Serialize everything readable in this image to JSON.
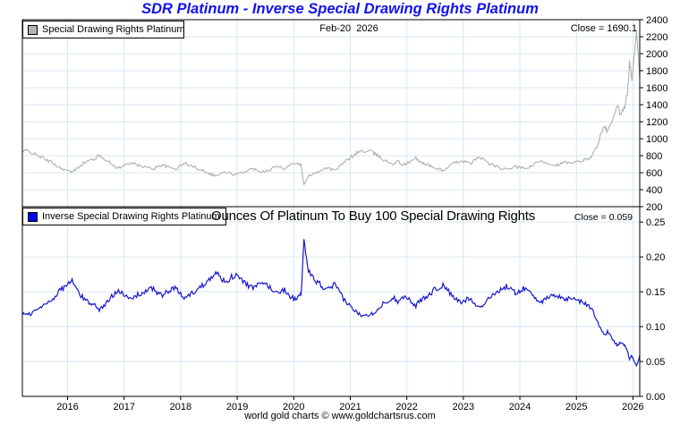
{
  "page": {
    "title": "SDR Platinum - Inverse Special Drawing Rights Platinum",
    "footer": "world gold charts © www.goldchartsrus.com"
  },
  "top_panel": {
    "legend_label": "Special Drawing Rights Platinum",
    "date_label": "Feb-20  2026",
    "close_label": "Close = 1690.1"
  },
  "bottom_panel": {
    "legend_label": "Inverse Special Drawing Rights Platinum",
    "subtitle": "Ounces Of Platinum To Buy 100 Special Drawing Rights",
    "close_label": "Close = 0.059"
  },
  "colors": {
    "title": "#1212ee",
    "grid": "#d7e6f4",
    "axis": "#000000",
    "tick_text": "#000000",
    "sdr_line": "#a9a9a9",
    "inverse_line": "#1616cd",
    "sdr_swatch": "#b3b3b3",
    "inverse_swatch": "#0000e6"
  },
  "chart_data": {
    "type": "line",
    "title": "SDR Platinum - Inverse Special Drawing Rights Platinum",
    "grid": true,
    "legend_position": "top-left",
    "x_unit": "year (fractional)",
    "xlim": [
      2015.2,
      2026.12
    ],
    "xticks": [
      2016,
      2017,
      2018,
      2019,
      2020,
      2021,
      2022,
      2023,
      2024,
      2025,
      2026
    ],
    "panels": [
      {
        "name": "Special Drawing Rights Platinum",
        "date": "Feb-20 2026",
        "close": 1690.1,
        "ylim": [
          200,
          2400
        ],
        "ytick_labels": [
          "2400",
          "2200",
          "2000",
          "1800",
          "1600",
          "1400",
          "1200",
          "1000",
          "800",
          "600",
          "400",
          "200"
        ],
        "line_color_key": "sdr_line"
      },
      {
        "name": "Inverse Special Drawing Rights Platinum",
        "subtitle": "Ounces Of Platinum To Buy 100 Special Drawing Rights",
        "close": 0.059,
        "ylim": [
          0,
          0.272
        ],
        "ytick_labels": [
          "0.25",
          "0.20",
          "0.15",
          "0.10",
          "0.05",
          "0.00"
        ],
        "line_color_key": "inverse_line",
        "relationship": "inverse values = 100 / SDR platinum price"
      }
    ],
    "texture_noise_pct": 2.5,
    "points_x_sdr_inverse": [
      [
        2015.2,
        845,
        0.1183
      ],
      [
        2015.28,
        860,
        0.1163
      ],
      [
        2015.36,
        840,
        0.119
      ],
      [
        2015.44,
        810,
        0.1235
      ],
      [
        2015.52,
        790,
        0.1266
      ],
      [
        2015.6,
        755,
        0.1325
      ],
      [
        2015.68,
        735,
        0.1361
      ],
      [
        2015.76,
        705,
        0.1418
      ],
      [
        2015.84,
        665,
        0.1504
      ],
      [
        2015.92,
        645,
        0.155
      ],
      [
        2016.0,
        620,
        0.1613
      ],
      [
        2016.08,
        605,
        0.1653
      ],
      [
        2016.16,
        650,
        0.1538
      ],
      [
        2016.24,
        695,
        0.1439
      ],
      [
        2016.32,
        725,
        0.1379
      ],
      [
        2016.4,
        745,
        0.1342
      ],
      [
        2016.48,
        765,
        0.1307
      ],
      [
        2016.56,
        800,
        0.125
      ],
      [
        2016.64,
        775,
        0.129
      ],
      [
        2016.72,
        730,
        0.137
      ],
      [
        2016.8,
        690,
        0.1449
      ],
      [
        2016.88,
        655,
        0.1527
      ],
      [
        2016.96,
        665,
        0.1504
      ],
      [
        2017.04,
        705,
        0.1418
      ],
      [
        2017.12,
        720,
        0.1389
      ],
      [
        2017.2,
        695,
        0.1439
      ],
      [
        2017.28,
        680,
        0.1471
      ],
      [
        2017.36,
        670,
        0.1493
      ],
      [
        2017.44,
        655,
        0.1527
      ],
      [
        2017.52,
        645,
        0.155
      ],
      [
        2017.6,
        675,
        0.1481
      ],
      [
        2017.68,
        695,
        0.1439
      ],
      [
        2017.76,
        665,
        0.1504
      ],
      [
        2017.84,
        655,
        0.1527
      ],
      [
        2017.92,
        645,
        0.155
      ],
      [
        2018.0,
        685,
        0.146
      ],
      [
        2018.08,
        710,
        0.1408
      ],
      [
        2018.16,
        685,
        0.146
      ],
      [
        2018.24,
        665,
        0.1504
      ],
      [
        2018.32,
        645,
        0.155
      ],
      [
        2018.4,
        625,
        0.16
      ],
      [
        2018.48,
        600,
        0.1667
      ],
      [
        2018.56,
        575,
        0.1739
      ],
      [
        2018.64,
        565,
        0.177
      ],
      [
        2018.72,
        595,
        0.1681
      ],
      [
        2018.8,
        605,
        0.1653
      ],
      [
        2018.88,
        590,
        0.1695
      ],
      [
        2018.96,
        575,
        0.1739
      ],
      [
        2019.04,
        590,
        0.1695
      ],
      [
        2019.12,
        610,
        0.1639
      ],
      [
        2019.2,
        630,
        0.1587
      ],
      [
        2019.28,
        645,
        0.155
      ],
      [
        2019.36,
        630,
        0.1587
      ],
      [
        2019.44,
        615,
        0.1626
      ],
      [
        2019.52,
        625,
        0.16
      ],
      [
        2019.6,
        645,
        0.155
      ],
      [
        2019.68,
        675,
        0.1481
      ],
      [
        2019.76,
        660,
        0.1515
      ],
      [
        2019.84,
        655,
        0.1527
      ],
      [
        2019.92,
        690,
        0.1449
      ],
      [
        2020.0,
        715,
        0.1399
      ],
      [
        2020.08,
        705,
        0.1418
      ],
      [
        2020.13,
        685,
        0.146
      ],
      [
        2020.18,
        450,
        0.2222
      ],
      [
        2020.24,
        540,
        0.1852
      ],
      [
        2020.32,
        585,
        0.1709
      ],
      [
        2020.4,
        605,
        0.1653
      ],
      [
        2020.48,
        625,
        0.16
      ],
      [
        2020.56,
        660,
        0.1515
      ],
      [
        2020.64,
        645,
        0.155
      ],
      [
        2020.72,
        625,
        0.16
      ],
      [
        2020.8,
        665,
        0.1504
      ],
      [
        2020.88,
        715,
        0.1399
      ],
      [
        2020.96,
        755,
        0.1325
      ],
      [
        2021.04,
        795,
        0.1258
      ],
      [
        2021.12,
        835,
        0.1198
      ],
      [
        2021.2,
        855,
        0.117
      ],
      [
        2021.28,
        845,
        0.1183
      ],
      [
        2021.36,
        855,
        0.117
      ],
      [
        2021.44,
        820,
        0.122
      ],
      [
        2021.52,
        785,
        0.1274
      ],
      [
        2021.6,
        745,
        0.1342
      ],
      [
        2021.68,
        725,
        0.1379
      ],
      [
        2021.76,
        705,
        0.1418
      ],
      [
        2021.84,
        735,
        0.1361
      ],
      [
        2021.92,
        695,
        0.1439
      ],
      [
        2022.0,
        705,
        0.1418
      ],
      [
        2022.08,
        735,
        0.1361
      ],
      [
        2022.16,
        770,
        0.1299
      ],
      [
        2022.24,
        725,
        0.1379
      ],
      [
        2022.32,
        705,
        0.1418
      ],
      [
        2022.4,
        685,
        0.146
      ],
      [
        2022.48,
        655,
        0.1527
      ],
      [
        2022.56,
        645,
        0.155
      ],
      [
        2022.64,
        625,
        0.16
      ],
      [
        2022.72,
        655,
        0.1527
      ],
      [
        2022.8,
        700,
        0.1429
      ],
      [
        2022.88,
        720,
        0.1389
      ],
      [
        2022.96,
        745,
        0.1342
      ],
      [
        2023.04,
        725,
        0.1379
      ],
      [
        2023.12,
        705,
        0.1418
      ],
      [
        2023.2,
        745,
        0.1342
      ],
      [
        2023.28,
        785,
        0.1274
      ],
      [
        2023.36,
        765,
        0.1307
      ],
      [
        2023.44,
        705,
        0.1418
      ],
      [
        2023.52,
        695,
        0.1439
      ],
      [
        2023.6,
        665,
        0.1504
      ],
      [
        2023.68,
        645,
        0.155
      ],
      [
        2023.76,
        635,
        0.1575
      ],
      [
        2023.84,
        655,
        0.1527
      ],
      [
        2023.92,
        670,
        0.1493
      ],
      [
        2024.0,
        660,
        0.1515
      ],
      [
        2024.08,
        645,
        0.155
      ],
      [
        2024.16,
        665,
        0.1504
      ],
      [
        2024.24,
        690,
        0.1449
      ],
      [
        2024.32,
        725,
        0.1379
      ],
      [
        2024.4,
        735,
        0.1361
      ],
      [
        2024.48,
        715,
        0.1399
      ],
      [
        2024.56,
        700,
        0.1429
      ],
      [
        2024.64,
        690,
        0.1449
      ],
      [
        2024.72,
        700,
        0.1429
      ],
      [
        2024.8,
        725,
        0.1379
      ],
      [
        2024.88,
        705,
        0.1418
      ],
      [
        2024.96,
        715,
        0.1399
      ],
      [
        2025.04,
        730,
        0.137
      ],
      [
        2025.12,
        745,
        0.1342
      ],
      [
        2025.2,
        765,
        0.1307
      ],
      [
        2025.28,
        800,
        0.125
      ],
      [
        2025.36,
        910,
        0.1099
      ],
      [
        2025.44,
        1060,
        0.0943
      ],
      [
        2025.5,
        1140,
        0.0877
      ],
      [
        2025.55,
        1080,
        0.0926
      ],
      [
        2025.62,
        1180,
        0.0847
      ],
      [
        2025.68,
        1290,
        0.0775
      ],
      [
        2025.73,
        1370,
        0.073
      ],
      [
        2025.78,
        1280,
        0.0781
      ],
      [
        2025.84,
        1340,
        0.0746
      ],
      [
        2025.9,
        1520,
        0.0658
      ],
      [
        2025.94,
        1890,
        0.0529
      ],
      [
        2025.98,
        1700,
        0.0588
      ],
      [
        2026.02,
        1950,
        0.0513
      ],
      [
        2026.06,
        2280,
        0.0439
      ],
      [
        2026.09,
        2020,
        0.0495
      ],
      [
        2026.11,
        1820,
        0.0549
      ],
      [
        2026.12,
        1690.1,
        0.0592
      ]
    ]
  }
}
